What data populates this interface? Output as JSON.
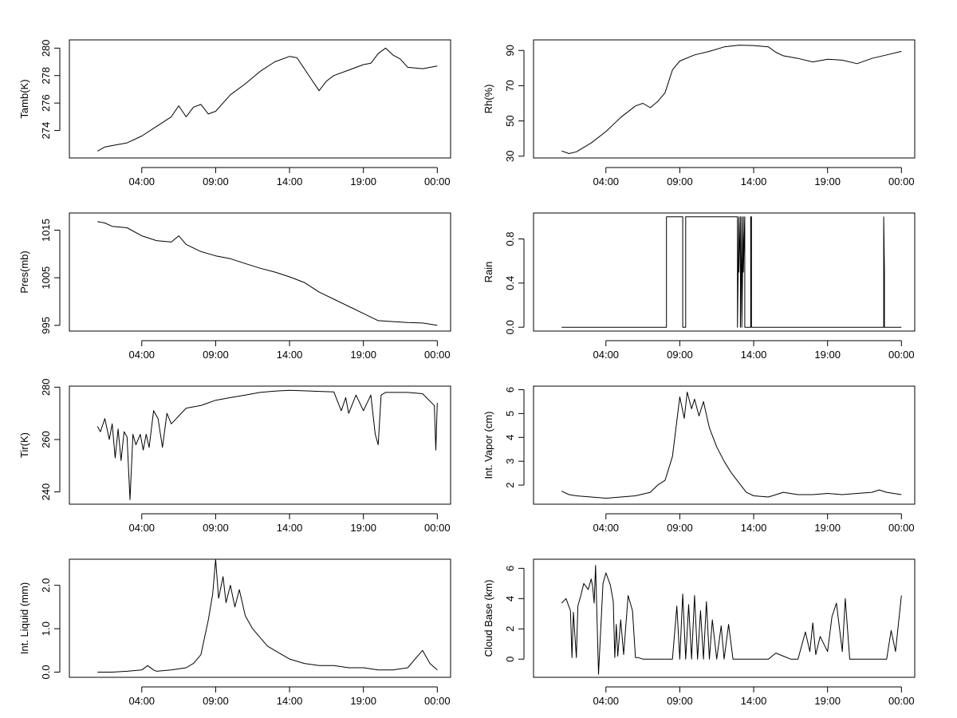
{
  "chart_data": [
    {
      "type": "line",
      "ylabel": "Tamb(K)",
      "xlabel": "",
      "x_ticks": [
        4,
        9,
        14,
        19,
        24
      ],
      "x_tick_labels": [
        "04:00",
        "09:00",
        "14:00",
        "19:00",
        "00:00"
      ],
      "xlim": [
        -0.9,
        24.9
      ],
      "ylim": [
        272.0,
        280.6
      ],
      "y_ticks": [
        274,
        276,
        278,
        280
      ],
      "y_tick_labels": [
        "274",
        "276",
        "278",
        "280"
      ],
      "series": [
        {
          "name": "Tamb",
          "x": [
            1,
            1.5,
            2,
            3,
            4,
            5,
            6,
            6.5,
            7,
            7.5,
            8,
            8.5,
            9,
            10,
            11,
            12,
            13,
            14,
            14.5,
            15,
            15.5,
            16,
            16.5,
            17,
            18,
            19,
            19.5,
            20,
            20.5,
            21,
            21.5,
            22,
            23,
            24
          ],
          "y": [
            272.5,
            272.8,
            272.9,
            273.1,
            273.6,
            274.3,
            275.0,
            275.8,
            275.0,
            275.7,
            275.9,
            275.2,
            275.4,
            276.6,
            277.4,
            278.3,
            279.0,
            279.4,
            279.3,
            278.5,
            277.7,
            276.9,
            277.6,
            278.0,
            278.4,
            278.8,
            278.9,
            279.6,
            280.0,
            279.5,
            279.2,
            278.6,
            278.5,
            278.7
          ]
        }
      ]
    },
    {
      "type": "line",
      "ylabel": "Rh(%)",
      "xlabel": "",
      "x_ticks": [
        4,
        9,
        14,
        19,
        24
      ],
      "x_tick_labels": [
        "04:00",
        "09:00",
        "14:00",
        "19:00",
        "00:00"
      ],
      "xlim": [
        -0.9,
        24.9
      ],
      "ylim": [
        29.0,
        96.0
      ],
      "y_ticks": [
        30,
        50,
        70,
        90
      ],
      "y_tick_labels": [
        "30",
        "50",
        "70",
        "90"
      ],
      "series": [
        {
          "name": "Rh",
          "x": [
            1,
            1.5,
            2,
            3,
            4,
            5,
            6,
            6.5,
            7,
            7.5,
            8,
            8.5,
            9,
            10,
            11,
            12,
            13,
            14,
            15,
            15.5,
            16,
            17,
            18,
            19,
            20,
            21,
            22,
            23,
            24
          ],
          "y": [
            33.0,
            31.5,
            32.5,
            37.5,
            44.0,
            52.0,
            58.5,
            60.0,
            57.5,
            61.0,
            66.0,
            79.0,
            84.0,
            87.5,
            89.5,
            92.0,
            93.0,
            92.8,
            92.0,
            89.0,
            87.0,
            85.5,
            83.5,
            85.0,
            84.5,
            82.5,
            85.5,
            87.5,
            89.5
          ]
        }
      ]
    },
    {
      "type": "line",
      "ylabel": "Pres(mb)",
      "xlabel": "",
      "x_ticks": [
        4,
        9,
        14,
        19,
        24
      ],
      "x_tick_labels": [
        "04:00",
        "09:00",
        "14:00",
        "19:00",
        "00:00"
      ],
      "xlim": [
        -0.9,
        24.9
      ],
      "ylim": [
        993.8,
        1018.6
      ],
      "y_ticks": [
        995,
        1005,
        1015
      ],
      "y_tick_labels": [
        "995",
        "1005",
        "1015"
      ],
      "series": [
        {
          "name": "Pres",
          "x": [
            1,
            1.5,
            2,
            3,
            4,
            5,
            6,
            6.5,
            7,
            8,
            9,
            10,
            11,
            12,
            13,
            14,
            15,
            16,
            17,
            18,
            19,
            20,
            21,
            22,
            23,
            24
          ],
          "y": [
            1016.8,
            1016.5,
            1015.8,
            1015.5,
            1013.8,
            1012.8,
            1012.5,
            1013.8,
            1012.0,
            1010.5,
            1009.6,
            1009.0,
            1008.0,
            1007.0,
            1006.2,
            1005.2,
            1004.0,
            1002.0,
            1000.5,
            999.0,
            997.5,
            996.0,
            995.8,
            995.6,
            995.5,
            995.0
          ]
        }
      ]
    },
    {
      "type": "line",
      "ylabel": "Rain",
      "xlabel": "",
      "x_ticks": [
        4,
        9,
        14,
        19,
        24
      ],
      "x_tick_labels": [
        "04:00",
        "09:00",
        "14:00",
        "19:00",
        "00:00"
      ],
      "xlim": [
        -0.9,
        24.9
      ],
      "ylim": [
        -0.035,
        1.035
      ],
      "y_ticks": [
        0.0,
        0.4,
        0.8
      ],
      "y_tick_labels": [
        "0.0",
        "0.4",
        "0.8"
      ],
      "series": [
        {
          "name": "Rain",
          "x": [
            1,
            8.1,
            8.1,
            9.2,
            9.2,
            9.4,
            9.4,
            12.9,
            12.9,
            13.0,
            13.0,
            13.1,
            13.1,
            13.2,
            13.2,
            13.3,
            13.3,
            13.4,
            13.4,
            13.8,
            13.8,
            13.85,
            13.85,
            22.8,
            22.8,
            22.85,
            22.85,
            24
          ],
          "y": [
            0,
            0,
            1,
            1,
            0,
            0,
            1,
            1,
            0,
            1,
            0.5,
            1,
            0,
            1,
            0,
            1,
            0.5,
            1,
            0,
            0,
            1,
            1,
            0,
            0,
            1,
            0.5,
            0,
            0
          ]
        }
      ]
    },
    {
      "type": "line",
      "ylabel": "Tir(K)",
      "xlabel": "",
      "x_ticks": [
        4,
        9,
        14,
        19,
        24
      ],
      "x_tick_labels": [
        "04:00",
        "09:00",
        "14:00",
        "19:00",
        "00:00"
      ],
      "xlim": [
        -0.9,
        24.9
      ],
      "ylim": [
        235.3,
        280.4
      ],
      "y_ticks": [
        240,
        260,
        280
      ],
      "y_tick_labels": [
        "240",
        "260",
        "280"
      ],
      "series": [
        {
          "name": "Tir",
          "x": [
            1,
            1.2,
            1.5,
            1.8,
            2.0,
            2.2,
            2.4,
            2.6,
            2.8,
            3.0,
            3.2,
            3.4,
            3.6,
            3.9,
            4.1,
            4.3,
            4.5,
            4.8,
            5.1,
            5.4,
            5.7,
            6.0,
            7,
            8,
            9,
            10,
            11,
            12,
            13,
            14,
            15,
            16,
            17,
            17.5,
            17.8,
            18,
            18.5,
            19,
            19.5,
            19.8,
            20.0,
            20.2,
            20.5,
            21,
            22,
            23,
            23.8,
            23.9,
            24.0
          ],
          "y": [
            265,
            263,
            268,
            260,
            266,
            253,
            264,
            252,
            263,
            261,
            237,
            262,
            258,
            262,
            256,
            262,
            257,
            271,
            268,
            257,
            270,
            266,
            272,
            273,
            275,
            276,
            277,
            278,
            278.5,
            278.8,
            278.6,
            278.4,
            278.2,
            271,
            276,
            270,
            277,
            271,
            277,
            262,
            258,
            277,
            278,
            278,
            278,
            277.5,
            273,
            256,
            274
          ]
        }
      ]
    },
    {
      "type": "line",
      "ylabel": "Int. Vapor (cm)",
      "xlabel": "",
      "x_ticks": [
        4,
        9,
        14,
        19,
        24
      ],
      "x_tick_labels": [
        "04:00",
        "09:00",
        "14:00",
        "19:00",
        "00:00"
      ],
      "xlim": [
        -0.9,
        24.9
      ],
      "ylim": [
        1.2,
        6.15
      ],
      "y_ticks": [
        2,
        3,
        4,
        5,
        6
      ],
      "y_tick_labels": [
        "2",
        "3",
        "4",
        "5",
        "6"
      ],
      "series": [
        {
          "name": "Int. Vapor",
          "x": [
            1,
            1.5,
            2,
            3,
            4,
            5,
            6,
            7,
            7.5,
            8,
            8.5,
            9,
            9.3,
            9.5,
            9.8,
            10,
            10.3,
            10.6,
            11,
            11.5,
            12,
            12.5,
            13,
            13.5,
            14,
            15,
            16,
            17,
            18,
            19,
            20,
            21,
            22,
            22.5,
            23,
            24
          ],
          "y": [
            1.75,
            1.6,
            1.55,
            1.5,
            1.45,
            1.5,
            1.55,
            1.7,
            2.0,
            2.2,
            3.2,
            5.7,
            4.8,
            5.9,
            5.2,
            5.6,
            4.9,
            5.5,
            4.4,
            3.6,
            3.0,
            2.5,
            2.1,
            1.7,
            1.55,
            1.5,
            1.7,
            1.6,
            1.6,
            1.65,
            1.6,
            1.65,
            1.7,
            1.8,
            1.7,
            1.6
          ]
        }
      ]
    },
    {
      "type": "line",
      "ylabel": "Int. Liquid (mm)",
      "xlabel": "",
      "x_ticks": [
        4,
        9,
        14,
        19,
        24
      ],
      "x_tick_labels": [
        "04:00",
        "09:00",
        "14:00",
        "19:00",
        "00:00"
      ],
      "xlim": [
        -0.9,
        24.9
      ],
      "ylim": [
        -0.12,
        2.6
      ],
      "y_ticks": [
        0.0,
        1.0,
        2.0
      ],
      "y_tick_labels": [
        "0.0",
        "1.0",
        "2.0"
      ],
      "series": [
        {
          "name": "Int. Liquid",
          "x": [
            1,
            2,
            3,
            4,
            4.4,
            4.8,
            5,
            6,
            7,
            7.5,
            8,
            8.5,
            8.8,
            9.0,
            9.2,
            9.5,
            9.7,
            10,
            10.3,
            10.6,
            11,
            11.5,
            12,
            12.5,
            13,
            14,
            15,
            16,
            17,
            18,
            19,
            20,
            21,
            22,
            22.5,
            23,
            23.5,
            24
          ],
          "y": [
            0.0,
            0.0,
            0.02,
            0.05,
            0.15,
            0.05,
            0.02,
            0.05,
            0.1,
            0.2,
            0.4,
            1.2,
            1.8,
            2.6,
            1.7,
            2.2,
            1.6,
            2.0,
            1.5,
            1.9,
            1.3,
            1.0,
            0.8,
            0.6,
            0.5,
            0.3,
            0.2,
            0.15,
            0.15,
            0.1,
            0.1,
            0.05,
            0.05,
            0.1,
            0.3,
            0.5,
            0.2,
            0.05
          ]
        }
      ]
    },
    {
      "type": "line",
      "ylabel": "Cloud Base (km)",
      "xlabel": "",
      "x_ticks": [
        4,
        9,
        14,
        19,
        24
      ],
      "x_tick_labels": [
        "04:00",
        "09:00",
        "14:00",
        "19:00",
        "00:00"
      ],
      "xlim": [
        -0.9,
        24.9
      ],
      "ylim": [
        -1.2,
        6.6
      ],
      "y_ticks": [
        0,
        2,
        4,
        6
      ],
      "y_tick_labels": [
        "0",
        "2",
        "4",
        "6"
      ],
      "series": [
        {
          "name": "Cloud Base",
          "x": [
            1,
            1.3,
            1.6,
            1.7,
            1.8,
            2.0,
            2.1,
            2.3,
            2.5,
            2.8,
            3.0,
            3.1,
            3.2,
            3.3,
            3.5,
            3.8,
            4.0,
            4.3,
            4.5,
            4.6,
            4.7,
            4.8,
            5.0,
            5.2,
            5.5,
            5.8,
            6.0,
            6.2,
            6.5,
            7,
            8,
            8.5,
            8.8,
            9.0,
            9.2,
            9.4,
            9.6,
            9.8,
            10.0,
            10.2,
            10.4,
            10.6,
            10.8,
            11.0,
            11.2,
            11.5,
            11.8,
            12.0,
            12.3,
            12.6,
            13,
            14,
            15,
            15.5,
            16,
            16.5,
            17,
            17.5,
            17.8,
            18.0,
            18.2,
            18.5,
            19,
            19.3,
            19.6,
            20.0,
            20.2,
            20.5,
            21,
            22,
            23,
            23.3,
            23.6,
            24.0
          ],
          "y": [
            3.7,
            4.0,
            3.2,
            0.1,
            3.1,
            0.1,
            3.5,
            4.2,
            5.0,
            4.6,
            5.3,
            4.8,
            3.7,
            6.2,
            -1.0,
            5.0,
            5.7,
            4.9,
            3.8,
            0.1,
            2.3,
            0.2,
            2.6,
            0.3,
            4.2,
            3.2,
            0.1,
            0.1,
            0.0,
            0.0,
            0.0,
            0.0,
            3.5,
            0.0,
            4.3,
            0.0,
            3.6,
            0.0,
            4.2,
            0.0,
            3.2,
            0.0,
            3.8,
            0.0,
            2.6,
            0.0,
            2.2,
            0.0,
            2.3,
            0.0,
            0.0,
            0.0,
            0.0,
            0.4,
            0.2,
            0.0,
            0.0,
            1.8,
            0.5,
            2.4,
            0.3,
            1.5,
            0.5,
            2.8,
            3.7,
            0.5,
            4.0,
            0.0,
            0.0,
            0.0,
            0.0,
            1.9,
            0.5,
            4.2
          ]
        }
      ]
    }
  ]
}
